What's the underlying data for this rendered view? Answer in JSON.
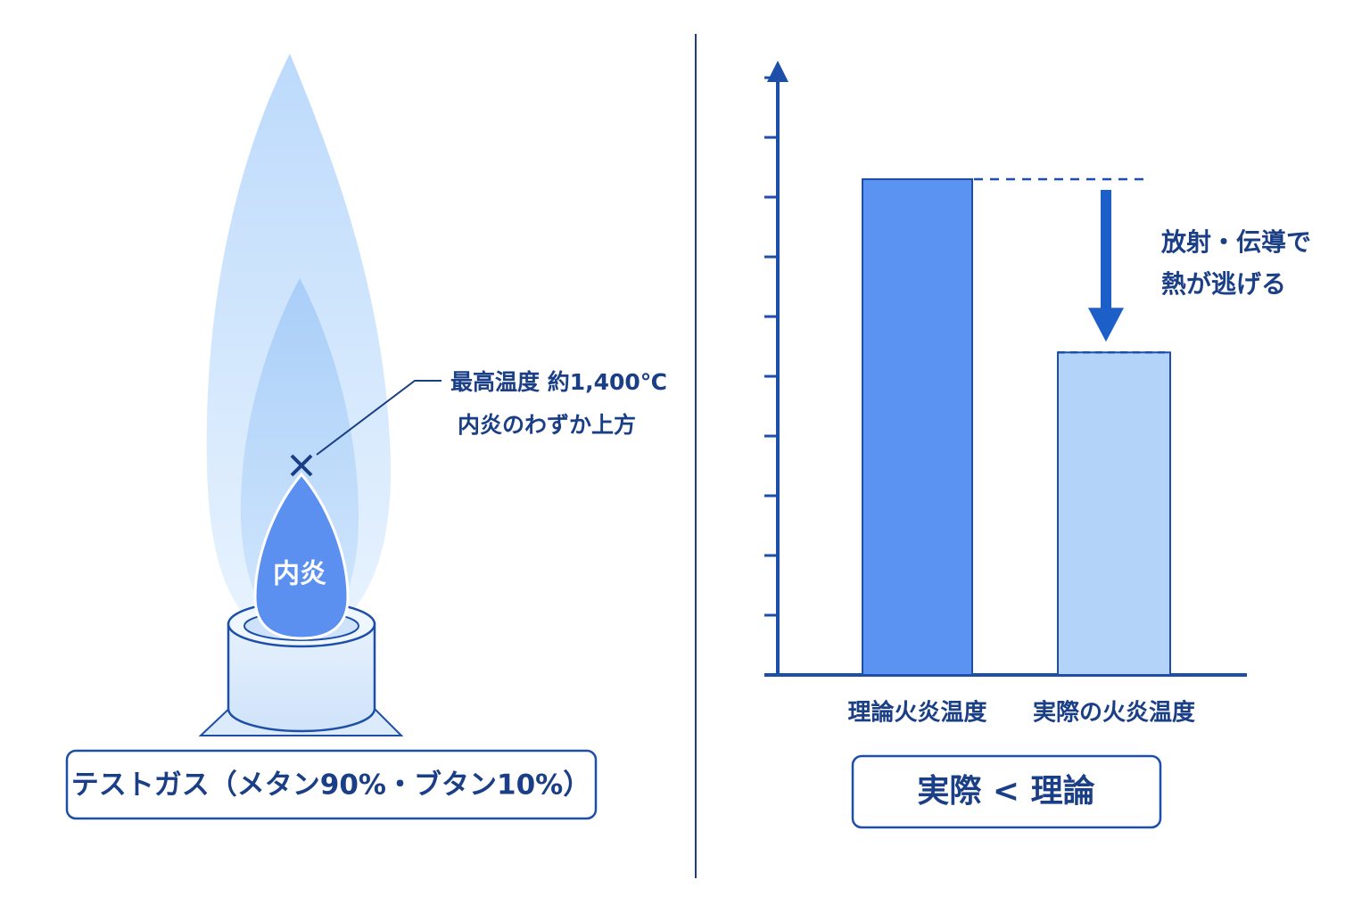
{
  "flame": {
    "inner_label": "内炎",
    "annotation": [
      "最高温度 約1,400℃",
      "内炎のわずか上方"
    ],
    "caption": "テストガス（メタン90%・ブタン10%）"
  },
  "chart_data": {
    "type": "bar",
    "categories": [
      "理論火炎温度",
      "実際の火炎温度"
    ],
    "values": [
      8.3,
      5.4
    ],
    "colors": [
      "#5b93f2",
      "#b3d3f8"
    ],
    "ylim": [
      0,
      10.3
    ],
    "yticks": [
      1,
      2,
      3,
      4,
      5,
      6,
      7,
      8,
      9,
      10
    ],
    "annotation": [
      "放射・伝導で",
      "熱が逃げる"
    ],
    "comparison": "実際 < 理論"
  }
}
